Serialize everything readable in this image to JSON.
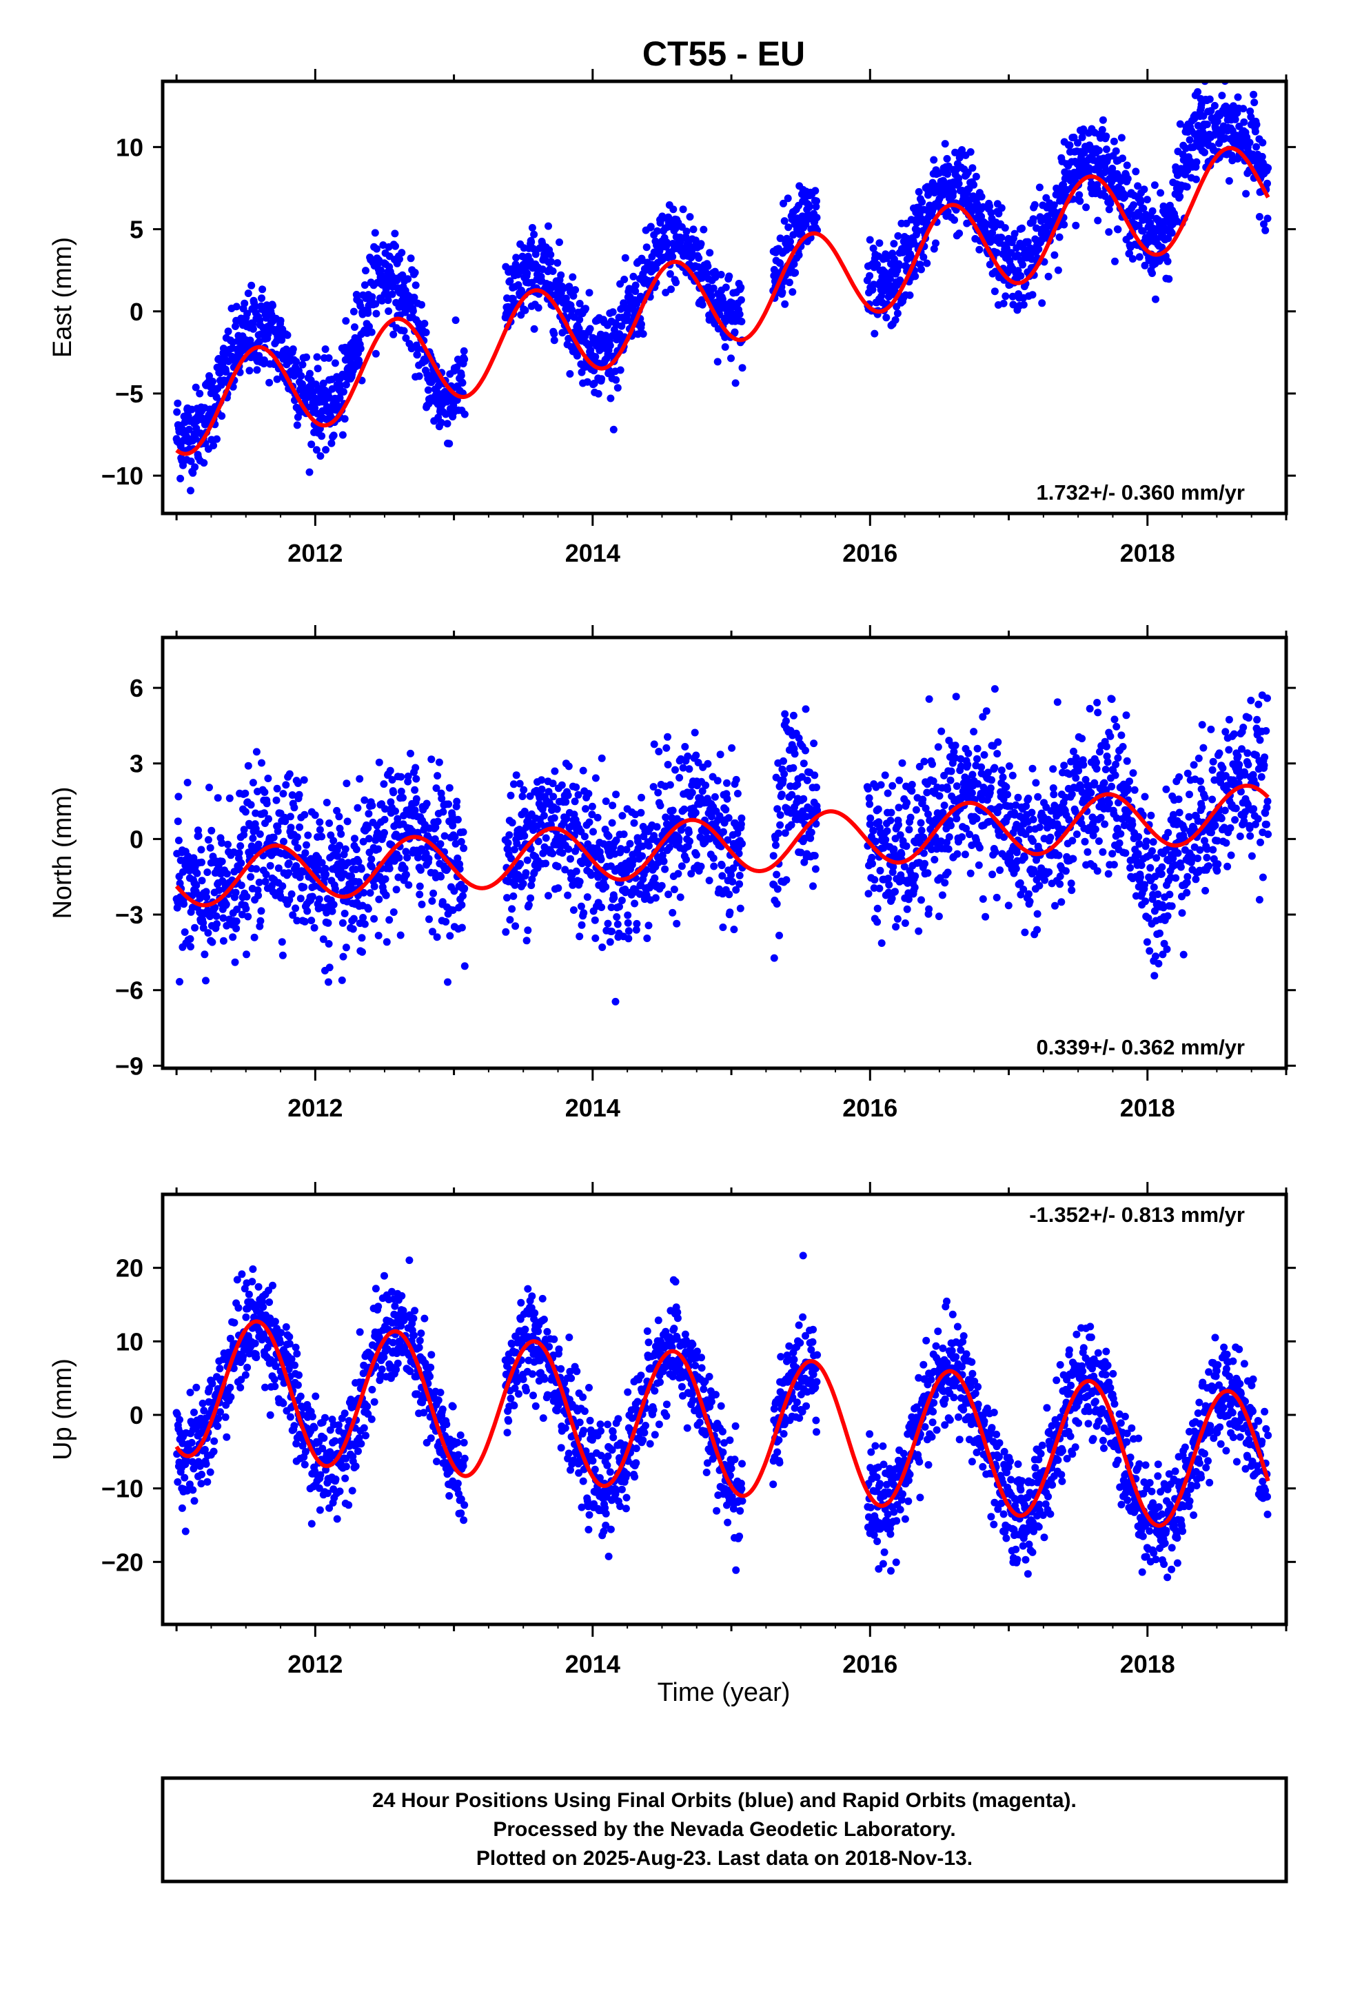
{
  "title": "CT55 - EU",
  "footer": {
    "line1": "24 Hour Positions Using Final Orbits (blue) and Rapid Orbits (magenta).",
    "line2": "Processed by the Nevada Geodetic Laboratory.",
    "line3": "Plotted on 2025-Aug-23. Last data on 2018-Nov-13."
  },
  "colors": {
    "final_orbits": "#0000ff",
    "fit_curve": "#ff0000",
    "frame": "#000000"
  },
  "chart_data": [
    {
      "type": "scatter",
      "component": "east",
      "ylabel": "East (mm)",
      "xlabel": "",
      "xlim": [
        2010.9,
        2019.0
      ],
      "ylim": [
        -12.3,
        14
      ],
      "xticks": [
        "2012",
        "2014",
        "2016",
        "2018"
      ],
      "yticks": [
        -10,
        -5,
        0,
        5,
        10
      ],
      "ytick_labels": [
        "−10",
        "−5",
        "0",
        "5",
        "10"
      ],
      "rate_text": "1.732+/- 0.360 mm/yr",
      "rate_position": "bottom-right",
      "series": [
        {
          "kind": "points",
          "color": "#0000ff",
          "model": {
            "a": -4.9,
            "rate": 1.732,
            "amp": 2.8,
            "phase": 0.33,
            "noise": 1.3,
            "extra": [
              [
                2012.2,
                2012.65,
                2.5
              ],
              [
                2012.7,
                2013.05,
                -2.5
              ],
              [
                2018.15,
                2018.5,
                2.5
              ]
            ]
          }
        },
        {
          "kind": "fit",
          "color": "#ff0000",
          "model": {
            "a": -6.0,
            "rate": 1.732,
            "amp": 2.8,
            "phase": 0.33
          }
        }
      ],
      "data_gaps": [
        [
          2013.08,
          2013.37
        ],
        [
          2015.08,
          2015.3
        ],
        [
          2015.62,
          2015.98
        ]
      ],
      "last_data": 2018.87
    },
    {
      "type": "scatter",
      "component": "north",
      "ylabel": "North (mm)",
      "xlabel": "",
      "xlim": [
        2010.9,
        2019.0
      ],
      "ylim": [
        -9.1,
        8
      ],
      "xticks": [
        "2012",
        "2014",
        "2016",
        "2018"
      ],
      "yticks": [
        -9,
        -6,
        -3,
        0,
        3,
        6
      ],
      "ytick_labels": [
        "−9",
        "−6",
        "−3",
        "0",
        "3",
        "6"
      ],
      "rate_text": "0.339+/- 0.362 mm/yr",
      "rate_position": "bottom-right",
      "series": [
        {
          "kind": "points",
          "color": "#0000ff",
          "model": {
            "a": -1.4,
            "rate": 0.339,
            "amp": 1.1,
            "phase": 0.46,
            "noise": 1.5,
            "extra": [
              [
                2017.85,
                2018.2,
                -2.6
              ],
              [
                2015.3,
                2015.55,
                2.5
              ]
            ]
          }
        },
        {
          "kind": "fit",
          "color": "#ff0000",
          "model": {
            "a": -1.6,
            "rate": 0.339,
            "amp": 1.1,
            "phase": 0.46
          }
        }
      ],
      "data_gaps": [
        [
          2013.08,
          2013.37
        ],
        [
          2015.08,
          2015.3
        ],
        [
          2015.62,
          2015.98
        ]
      ],
      "last_data": 2018.87
    },
    {
      "type": "scatter",
      "component": "up",
      "ylabel": "Up (mm)",
      "xlabel": "Time (year)",
      "xlim": [
        2010.9,
        2019.0
      ],
      "ylim": [
        -28.5,
        30
      ],
      "xticks": [
        "2012",
        "2014",
        "2016",
        "2018"
      ],
      "yticks": [
        -20,
        -10,
        0,
        10,
        20
      ],
      "ytick_labels": [
        "−20",
        "−10",
        "0",
        "10",
        "20"
      ],
      "rate_text": "-1.352+/- 0.813 mm/yr",
      "rate_position": "top-right",
      "series": [
        {
          "kind": "points",
          "color": "#0000ff",
          "model": {
            "a": 4.0,
            "rate": -1.352,
            "amp": 9.5,
            "phase": 0.33,
            "noise": 3.5,
            "extra": []
          }
        },
        {
          "kind": "fit",
          "color": "#ff0000",
          "model": {
            "a": 4.0,
            "rate": -1.352,
            "amp": 9.5,
            "phase": 0.33
          }
        }
      ],
      "data_gaps": [
        [
          2013.08,
          2013.37
        ],
        [
          2015.08,
          2015.3
        ],
        [
          2015.62,
          2015.98
        ]
      ],
      "last_data": 2018.87
    }
  ]
}
